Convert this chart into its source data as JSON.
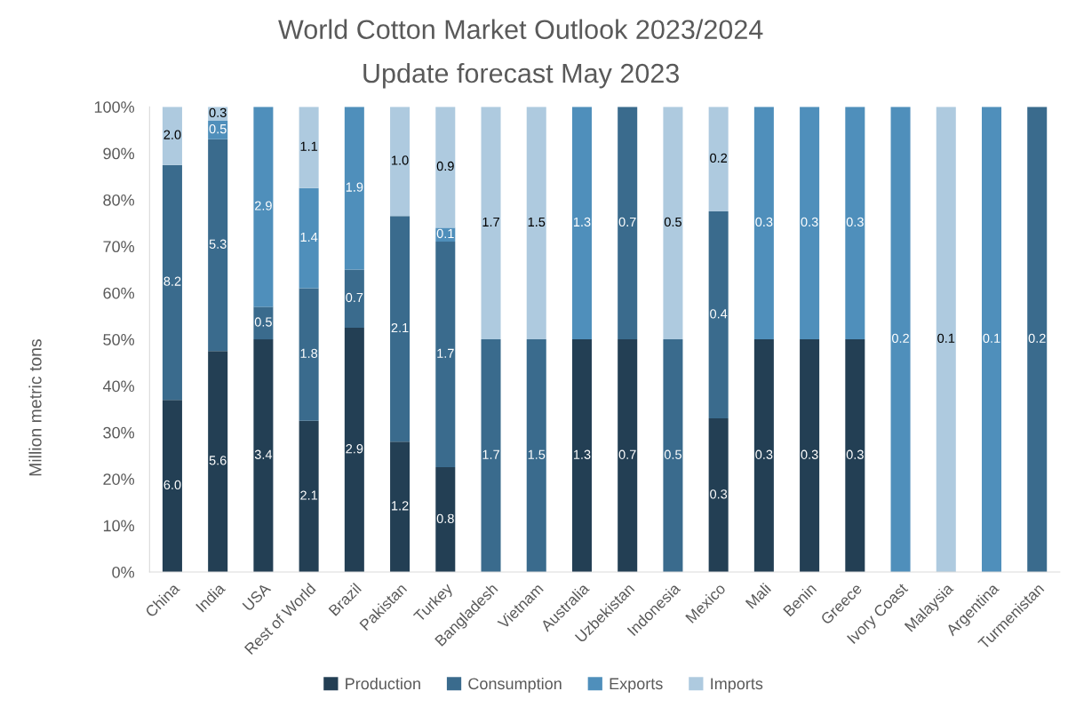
{
  "chart_data": {
    "type": "bar",
    "title": "World Cotton Market Outlook 2023/2024",
    "subtitle": "Update forecast May 2023",
    "ylabel": "Million metric tons",
    "categories": [
      "China",
      "India",
      "USA",
      "Rest of World",
      "Brazil",
      "Pakistan",
      "Turkey",
      "Bangladesh",
      "Vietnam",
      "Australia",
      "Uzbekistan",
      "Indonesia",
      "Mexico",
      "Mali",
      "Benin",
      "Greece",
      "Ivory Coast",
      "Malaysia",
      "Argentina",
      "Turmenistan"
    ],
    "stacked": true,
    "series": [
      {
        "name": "Production",
        "color": "#233f54",
        "values": [
          37,
          47.5,
          50,
          32.5,
          52.5,
          28,
          22.5,
          null,
          null,
          50,
          50,
          null,
          33,
          50,
          50,
          50,
          null,
          null,
          null,
          null
        ]
      },
      {
        "name": "Consumption",
        "color": "#3a6b8d",
        "values": [
          50.5,
          45.5,
          7,
          28.5,
          12.5,
          48.5,
          48.5,
          50,
          50,
          null,
          50,
          50,
          44.5,
          null,
          null,
          null,
          null,
          null,
          null,
          100
        ]
      },
      {
        "name": "Exports",
        "color": "#4f8fbb",
        "values": [
          null,
          4,
          43,
          21.5,
          35,
          null,
          3,
          null,
          null,
          50,
          null,
          null,
          null,
          50,
          50,
          50,
          100,
          null,
          100,
          null
        ]
      },
      {
        "name": "Imports",
        "color": "#aecadf",
        "values": [
          12.5,
          3,
          null,
          17.5,
          null,
          23.5,
          26,
          50,
          50,
          null,
          null,
          50,
          22.5,
          null,
          null,
          null,
          null,
          100,
          null,
          null
        ]
      }
    ],
    "annotations": [
      "6.0",
      "8.2",
      "2.0",
      "5.6",
      "5.3",
      "0.5",
      "0.3",
      "3.4",
      "0.5",
      "2.9",
      "2.1",
      "1.8",
      "1.4",
      "1.1",
      "2.9",
      "0.7",
      "1.9",
      "1.2",
      "2.1",
      "1.0",
      "0.8",
      "1.7",
      "0.1",
      "0.9",
      "1.7",
      "1.7",
      "1.5",
      "1.5",
      "1.3",
      "1.3",
      "0.7",
      "0.7",
      "0.5",
      "0.5",
      "0.3",
      "0.4",
      "0.2",
      "0.3",
      "0.3",
      "0.3",
      "0.3",
      "0.3",
      "0.3",
      "0.2",
      "0.1",
      "0.1",
      "0.2"
    ],
    "ylim": [
      0,
      100
    ],
    "yticks": [
      {
        "value": 0,
        "label": "0%"
      },
      {
        "value": 10,
        "label": "10%"
      },
      {
        "value": 20,
        "label": "20%"
      },
      {
        "value": 30,
        "label": "30%"
      },
      {
        "value": 40,
        "label": "40%"
      },
      {
        "value": 50,
        "label": "50%"
      },
      {
        "value": 60,
        "label": "60%"
      },
      {
        "value": 70,
        "label": "70%"
      },
      {
        "value": 80,
        "label": "80%"
      },
      {
        "value": 90,
        "label": "90%"
      },
      {
        "value": 100,
        "label": "100%"
      }
    ],
    "grid": false,
    "legend": "bottom"
  }
}
